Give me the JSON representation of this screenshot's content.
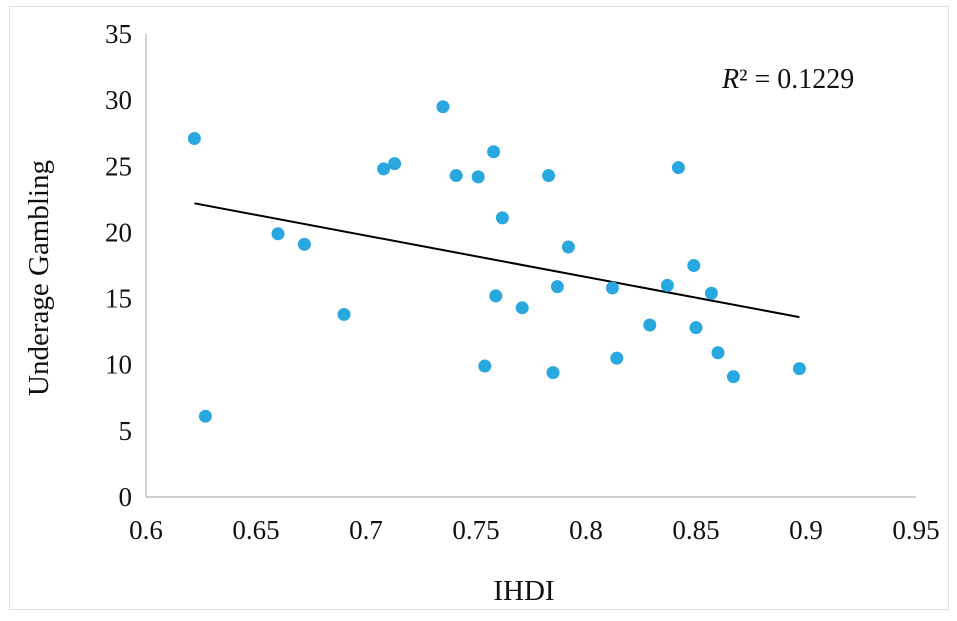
{
  "chart_data": {
    "type": "scatter",
    "xlabel": "IHDI",
    "ylabel": "Underage Gambling",
    "xlim": [
      0.6,
      0.95
    ],
    "ylim": [
      0,
      35
    ],
    "x_ticks": [
      "0.6",
      "0.65",
      "0.7",
      "0.75",
      "0.8",
      "0.85",
      "0.9",
      "0.95"
    ],
    "y_ticks": [
      "0",
      "5",
      "10",
      "15",
      "20",
      "25",
      "30",
      "35"
    ],
    "grid": false,
    "legend": "none",
    "colors": {
      "points": "#29a8e0",
      "trendline": "#000000",
      "axis": "#bfbfbf"
    },
    "points": [
      {
        "x": 0.622,
        "y": 27.1
      },
      {
        "x": 0.627,
        "y": 6.1
      },
      {
        "x": 0.66,
        "y": 19.9
      },
      {
        "x": 0.672,
        "y": 19.1
      },
      {
        "x": 0.69,
        "y": 13.8
      },
      {
        "x": 0.708,
        "y": 24.8
      },
      {
        "x": 0.713,
        "y": 25.2
      },
      {
        "x": 0.735,
        "y": 29.5
      },
      {
        "x": 0.741,
        "y": 24.3
      },
      {
        "x": 0.751,
        "y": 24.2
      },
      {
        "x": 0.754,
        "y": 9.9
      },
      {
        "x": 0.758,
        "y": 26.1
      },
      {
        "x": 0.759,
        "y": 15.2
      },
      {
        "x": 0.762,
        "y": 21.1
      },
      {
        "x": 0.771,
        "y": 14.3
      },
      {
        "x": 0.783,
        "y": 24.3
      },
      {
        "x": 0.785,
        "y": 9.4
      },
      {
        "x": 0.787,
        "y": 15.9
      },
      {
        "x": 0.792,
        "y": 18.9
      },
      {
        "x": 0.812,
        "y": 15.8
      },
      {
        "x": 0.814,
        "y": 10.5
      },
      {
        "x": 0.829,
        "y": 13.0
      },
      {
        "x": 0.837,
        "y": 16.0
      },
      {
        "x": 0.842,
        "y": 24.9
      },
      {
        "x": 0.849,
        "y": 17.5
      },
      {
        "x": 0.85,
        "y": 12.8
      },
      {
        "x": 0.857,
        "y": 15.4
      },
      {
        "x": 0.86,
        "y": 10.9
      },
      {
        "x": 0.867,
        "y": 9.1
      },
      {
        "x": 0.897,
        "y": 9.7
      }
    ],
    "trendline": {
      "type": "linear",
      "x": [
        0.622,
        0.897
      ],
      "y": [
        22.2,
        13.6
      ]
    },
    "annotation": {
      "r_symbol": "R",
      "r_rest": "² = 0.1229"
    }
  }
}
